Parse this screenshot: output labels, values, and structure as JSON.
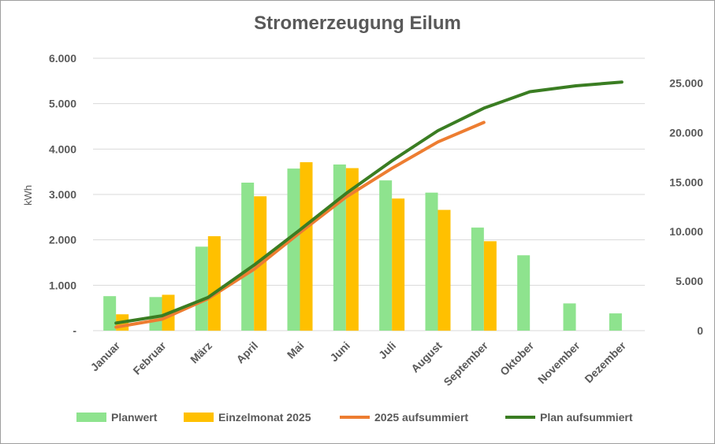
{
  "title": "Stromerzeugung Eilum",
  "chart_data": {
    "type": "bar",
    "title": "Stromerzeugung Eilum",
    "xlabel": "",
    "ylabel": "kWh",
    "ylim": [
      0,
      6000
    ],
    "y2lim": [
      0,
      27500
    ],
    "yticks": [
      0,
      1000,
      2000,
      3000,
      4000,
      5000,
      6000
    ],
    "ytick_labels": [
      "-",
      "1.000",
      "2.000",
      "3.000",
      "4.000",
      "5.000",
      "6.000"
    ],
    "y2ticks": [
      0,
      5000,
      10000,
      15000,
      20000,
      25000
    ],
    "y2tick_labels": [
      "0",
      "5.000",
      "10.000",
      "15.000",
      "20.000",
      "25.000"
    ],
    "grid": true,
    "legend_position": "bottom",
    "categories": [
      "Januar",
      "Februar",
      "März",
      "April",
      "Mai",
      "Juni",
      "Juli",
      "August",
      "September",
      "Oktober",
      "November",
      "Dezember"
    ],
    "series": [
      {
        "name": "Planwert",
        "type": "bar",
        "axis": "left",
        "color": "#8ee38e",
        "values": [
          760,
          740,
          1850,
          3260,
          3570,
          3660,
          3310,
          3040,
          2270,
          1660,
          600,
          380
        ]
      },
      {
        "name": "Einzelmonat 2025",
        "type": "bar",
        "axis": "left",
        "color": "#ffc000",
        "values": [
          360,
          790,
          2080,
          2960,
          3710,
          3580,
          2910,
          2660,
          1970,
          null,
          null,
          null
        ]
      },
      {
        "name": "2025 aufsummiert",
        "type": "line",
        "axis": "right",
        "color": "#ed7d31",
        "values": [
          360,
          1150,
          3230,
          6190,
          9900,
          13480,
          16390,
          19050,
          21020,
          null,
          null,
          null
        ]
      },
      {
        "name": "Plan aufsummiert",
        "type": "line",
        "axis": "right",
        "color": "#3a7d22",
        "values": [
          760,
          1500,
          3350,
          6610,
          10180,
          13840,
          17150,
          20190,
          22460,
          24120,
          24720,
          25100
        ]
      }
    ]
  }
}
